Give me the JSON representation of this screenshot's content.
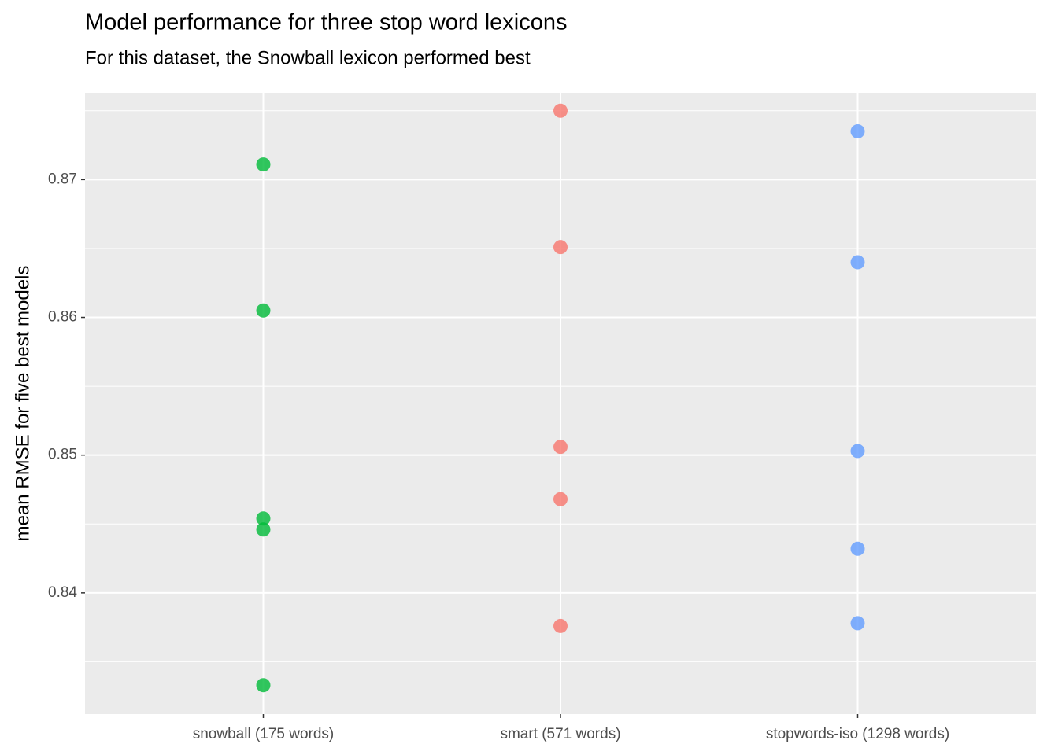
{
  "chart_data": {
    "type": "strip",
    "title": "Model performance for three stop word lexicons",
    "subtitle": "For this dataset, the Snowball lexicon performed best",
    "y_label": "mean RMSE for five best models",
    "categories": [
      "snowball (175 words)",
      "smart (571 words)",
      "stopwords-iso (1298 words)"
    ],
    "values": [
      [
        0.8711,
        0.8605,
        0.8454,
        0.8446,
        0.8333
      ],
      [
        0.875,
        0.8651,
        0.8506,
        0.8468,
        0.8376
      ],
      [
        0.8735,
        0.864,
        0.8503,
        0.8432,
        0.8378
      ]
    ],
    "colors": [
      "#00BA38",
      "#F8766D",
      "#619CFF"
    ],
    "ylim": [
      0.8312,
      0.8763
    ],
    "yticks": [
      0.84,
      0.85,
      0.86,
      0.87
    ],
    "grid": true
  }
}
